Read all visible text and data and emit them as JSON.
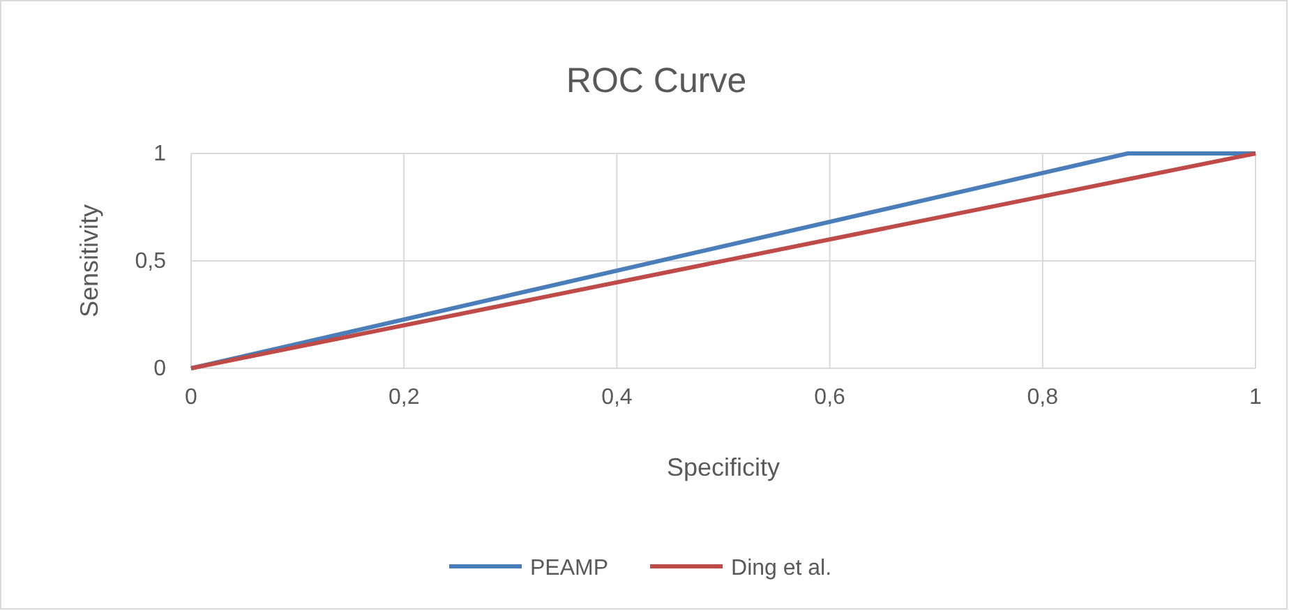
{
  "chart_data": {
    "type": "line",
    "title": "ROC Curve",
    "xlabel": "Specificity",
    "ylabel": "Sensitivity",
    "xlim": [
      0,
      1
    ],
    "ylim": [
      0,
      1
    ],
    "xticks": [
      0,
      {
        "value": 0.2,
        "label": "0,2"
      },
      {
        "value": 0.4,
        "label": "0,4"
      },
      {
        "value": 0.6,
        "label": "0,6"
      },
      {
        "value": 0.8,
        "label": "0,8"
      },
      1
    ],
    "yticks": [
      0,
      {
        "value": 0.5,
        "label": "0,5"
      },
      1
    ],
    "grid": true,
    "legend": "bottom",
    "marker": "none",
    "line_style": "solid",
    "series": [
      {
        "name": "PEAMP",
        "color": "#4a7ebb",
        "x": [
          0,
          0.88,
          1
        ],
        "values": [
          0,
          1,
          1
        ]
      },
      {
        "name": "Ding et al.",
        "color": "#be4b48",
        "x": [
          0,
          1
        ],
        "values": [
          0,
          1
        ]
      }
    ]
  }
}
